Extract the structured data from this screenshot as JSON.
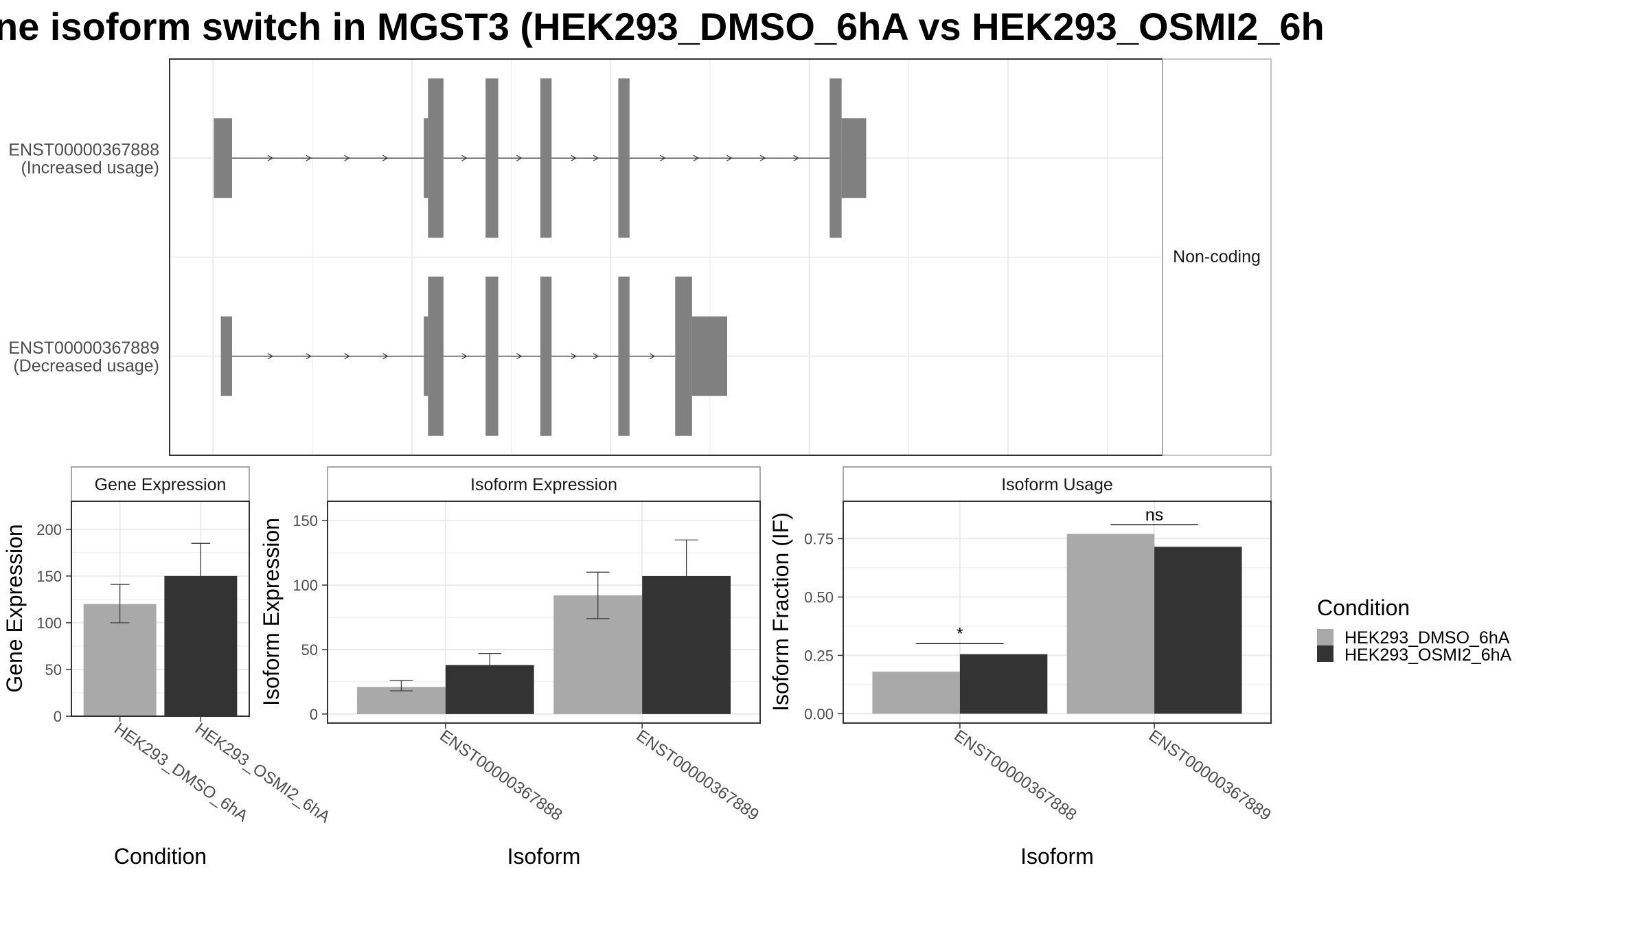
{
  "title": "ne isoform switch in MGST3 (HEK293_DMSO_6hA vs HEK293_OSMI2_6h",
  "colors": {
    "feature": "#808080",
    "dmso": "#A9A9A9",
    "osmi2": "#333333",
    "grid": "#EBEBEB",
    "border": "#333333",
    "strip_fill": "#FFFFFF",
    "strip_border": "#8C8C8C"
  },
  "legend": {
    "title": "Condition",
    "position": "right",
    "items": [
      {
        "label": "HEK293_DMSO_6hA",
        "color": "#A9A9A9"
      },
      {
        "label": "HEK293_OSMI2_6hA",
        "color": "#333333"
      }
    ]
  },
  "chart_data": [
    {
      "type": "gene-structure",
      "panel_label": "Non-coding",
      "transcripts": [
        {
          "id": "ENST00000367888",
          "label": "ENST00000367888",
          "sublabel": "(Increased usage)",
          "exons": [
            [
              1,
              27,
              "utr"
            ],
            [
              300,
              306,
              "utr"
            ],
            [
              306,
              328,
              "cds"
            ],
            [
              388,
              406,
              "cds"
            ],
            [
              466,
              482,
              "cds"
            ],
            [
              577,
              593,
              "cds"
            ],
            [
              878,
              895,
              "cds"
            ],
            [
              895,
              930,
              "utr"
            ]
          ]
        },
        {
          "id": "ENST00000367889",
          "label": "ENST00000367889",
          "sublabel": "(Decreased usage)",
          "exons": [
            [
              11,
              27,
              "utr"
            ],
            [
              300,
              306,
              "utr"
            ],
            [
              306,
              328,
              "cds"
            ],
            [
              388,
              406,
              "cds"
            ],
            [
              466,
              482,
              "cds"
            ],
            [
              577,
              593,
              "cds"
            ],
            [
              658,
              682,
              "cds"
            ],
            [
              682,
              732,
              "utr"
            ]
          ]
        }
      ]
    },
    {
      "type": "bar",
      "title": "Gene Expression",
      "xlabel": "Condition",
      "ylabel": "Gene Expression",
      "ylim": [
        0,
        230
      ],
      "yticks": [
        0,
        50,
        100,
        150,
        200
      ],
      "categories": [
        "HEK293_DMSO_6hA",
        "HEK293_OSMI2_6hA"
      ],
      "series": [
        {
          "values": [
            120,
            150
          ],
          "errors_low": [
            100,
            115
          ],
          "errors_high": [
            141,
            185
          ]
        }
      ]
    },
    {
      "type": "bar",
      "title": "Isoform Expression",
      "xlabel": "Isoform",
      "ylabel": "Isoform Expression",
      "ylim": [
        -7,
        165
      ],
      "yticks": [
        0,
        50,
        100,
        150
      ],
      "categories": [
        "ENST00000367888",
        "ENST00000367889"
      ],
      "series": [
        {
          "name": "HEK293_DMSO_6hA",
          "values": [
            21,
            92
          ],
          "errors_low": [
            18,
            74
          ],
          "errors_high": [
            26,
            110
          ]
        },
        {
          "name": "HEK293_OSMI2_6hA",
          "values": [
            38,
            107
          ],
          "errors_low": [
            29,
            79
          ],
          "errors_high": [
            47,
            135
          ]
        }
      ]
    },
    {
      "type": "bar",
      "title": "Isoform Usage",
      "xlabel": "Isoform",
      "ylabel": "Isoform Fraction (IF)",
      "ylim": [
        -0.04,
        0.91
      ],
      "yticks": [
        0.0,
        0.25,
        0.5,
        0.75
      ],
      "ytick_labels": [
        "0.00",
        "0.25",
        "0.50",
        "0.75"
      ],
      "categories": [
        "ENST00000367888",
        "ENST00000367889"
      ],
      "series": [
        {
          "name": "HEK293_DMSO_6hA",
          "values": [
            0.18,
            0.77
          ]
        },
        {
          "name": "HEK293_OSMI2_6hA",
          "values": [
            0.255,
            0.715
          ]
        }
      ],
      "annotations": [
        {
          "category": "ENST00000367888",
          "label": "*",
          "y": 0.3
        },
        {
          "category": "ENST00000367889",
          "label": "ns",
          "y": 0.81
        }
      ]
    }
  ]
}
